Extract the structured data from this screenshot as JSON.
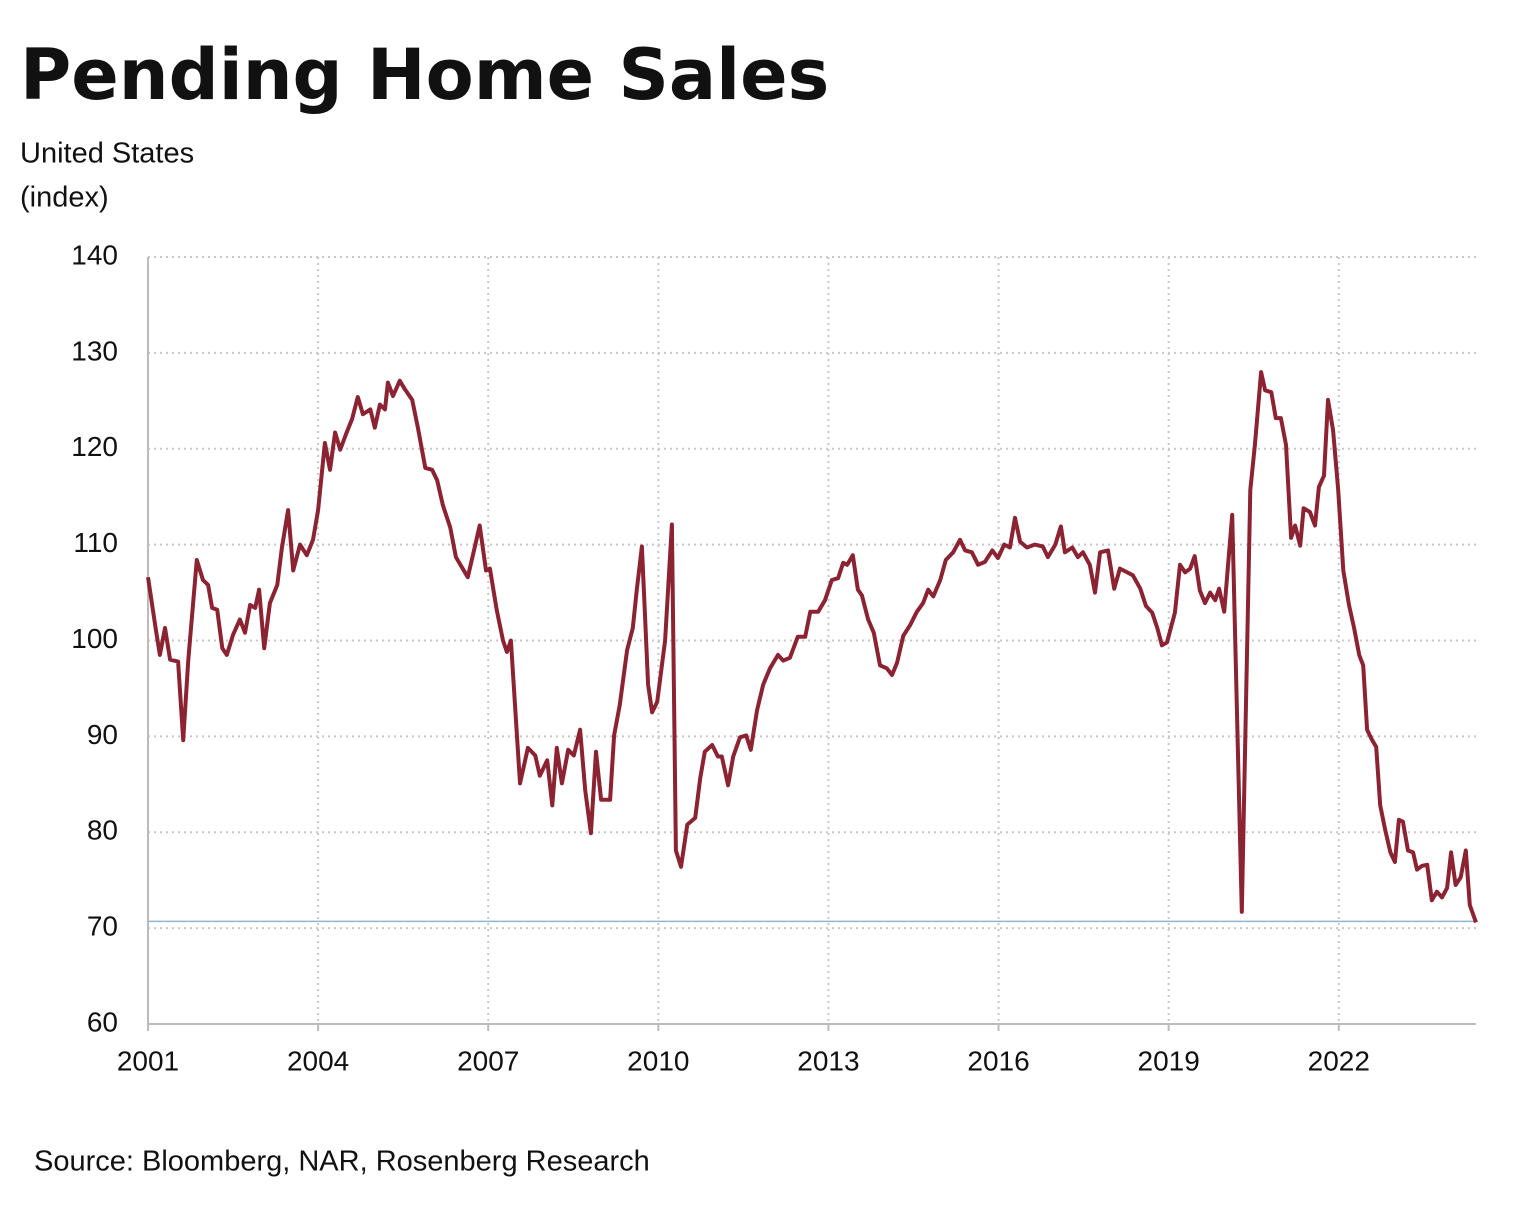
{
  "chart_data": {
    "type": "line",
    "title": "Pending Home Sales",
    "subtitle": "United States",
    "ylabel": "(index)",
    "source": "Source: Bloomberg, NAR, Rosenberg Research",
    "color": "#8b2332",
    "grid": true,
    "reference_line": 70.7,
    "reference_color": "#8fb4d6",
    "xlim": [
      2001,
      2024.42
    ],
    "xticks": [
      2001,
      2004,
      2007,
      2010,
      2013,
      2016,
      2019,
      2022
    ],
    "ylim": [
      60,
      140
    ],
    "yticks": [
      60,
      70,
      80,
      90,
      100,
      110,
      120,
      130,
      140
    ],
    "x": [
      2001.0,
      2001.14,
      2001.21,
      2001.3,
      2001.39,
      2001.53,
      2001.62,
      2001.71,
      2001.86,
      2001.97,
      2002.06,
      2002.13,
      2002.22,
      2002.31,
      2002.39,
      2002.5,
      2002.62,
      2002.71,
      2002.8,
      2002.89,
      2002.96,
      2003.05,
      2003.15,
      2003.28,
      2003.36,
      2003.47,
      2003.56,
      2003.68,
      2003.8,
      2003.91,
      2004.0,
      2004.12,
      2004.21,
      2004.3,
      2004.39,
      2004.49,
      2004.6,
      2004.7,
      2004.79,
      2004.92,
      2005.0,
      2005.09,
      2005.18,
      2005.23,
      2005.32,
      2005.44,
      2005.53,
      2005.66,
      2005.76,
      2005.89,
      2006.01,
      2006.1,
      2006.2,
      2006.33,
      2006.43,
      2006.54,
      2006.64,
      2006.75,
      2006.85,
      2006.96,
      2007.03,
      2007.15,
      2007.26,
      2007.33,
      2007.4,
      2007.56,
      2007.7,
      2007.83,
      2007.91,
      2008.04,
      2008.13,
      2008.21,
      2008.3,
      2008.41,
      2008.51,
      2008.62,
      2008.71,
      2008.81,
      2008.9,
      2008.99,
      2009.15,
      2009.22,
      2009.32,
      2009.45,
      2009.55,
      2009.62,
      2009.71,
      2009.82,
      2009.89,
      2009.98,
      2010.12,
      2010.24,
      2010.31,
      2010.4,
      2010.51,
      2010.65,
      2010.74,
      2010.82,
      2010.95,
      2011.05,
      2011.12,
      2011.23,
      2011.32,
      2011.44,
      2011.55,
      2011.63,
      2011.74,
      2011.85,
      2011.97,
      2012.11,
      2012.2,
      2012.32,
      2012.46,
      2012.59,
      2012.68,
      2012.82,
      2012.94,
      2013.06,
      2013.17,
      2013.26,
      2013.33,
      2013.43,
      2013.52,
      2013.59,
      2013.7,
      2013.8,
      2013.91,
      2014.03,
      2014.12,
      2014.21,
      2014.32,
      2014.44,
      2014.56,
      2014.67,
      2014.76,
      2014.85,
      2014.97,
      2015.07,
      2015.2,
      2015.32,
      2015.41,
      2015.53,
      2015.64,
      2015.76,
      2015.89,
      2015.99,
      2016.1,
      2016.2,
      2016.29,
      2016.38,
      2016.5,
      2016.64,
      2016.78,
      2016.87,
      2017.0,
      2017.1,
      2017.17,
      2017.3,
      2017.4,
      2017.49,
      2017.61,
      2017.7,
      2017.79,
      2017.93,
      2018.04,
      2018.14,
      2018.27,
      2018.37,
      2018.5,
      2018.6,
      2018.71,
      2018.8,
      2018.88,
      2018.97,
      2019.11,
      2019.2,
      2019.29,
      2019.38,
      2019.46,
      2019.55,
      2019.64,
      2019.73,
      2019.82,
      2019.89,
      2019.98,
      2020.12,
      2020.29,
      2020.44,
      2020.52,
      2020.63,
      2020.7,
      2020.81,
      2020.89,
      2020.98,
      2021.07,
      2021.16,
      2021.23,
      2021.32,
      2021.38,
      2021.49,
      2021.58,
      2021.65,
      2021.74,
      2021.81,
      2021.9,
      2021.99,
      2022.08,
      2022.18,
      2022.27,
      2022.36,
      2022.43,
      2022.5,
      2022.59,
      2022.66,
      2022.73,
      2022.82,
      2022.91,
      2022.99,
      2023.06,
      2023.13,
      2023.22,
      2023.31,
      2023.38,
      2023.47,
      2023.56,
      2023.64,
      2023.73,
      2023.82,
      2023.91,
      2023.98,
      2024.06,
      2024.15,
      2024.24,
      2024.31,
      2024.42
    ],
    "values": [
      106.6,
      101.1,
      98.5,
      101.3,
      98,
      97.8,
      89.6,
      98,
      108.4,
      106.3,
      105.8,
      103.4,
      103.2,
      99.2,
      98.5,
      100.6,
      102.2,
      100.8,
      103.7,
      103.4,
      105.3,
      99.2,
      103.9,
      105.8,
      109.6,
      113.6,
      107.3,
      110,
      108.9,
      110.5,
      113.6,
      120.6,
      117.8,
      121.7,
      119.9,
      121.5,
      123.1,
      125.4,
      123.6,
      124.1,
      122.2,
      124.6,
      124.1,
      126.9,
      125.5,
      127.1,
      126.2,
      125.1,
      122.2,
      118.0,
      117.8,
      116.7,
      114.1,
      111.8,
      108.7,
      107.6,
      106.6,
      109.4,
      112.0,
      107.3,
      107.5,
      103.2,
      100.0,
      98.8,
      100.0,
      85.1,
      88.8,
      88.0,
      85.9,
      87.5,
      82.8,
      88.8,
      85.1,
      88.6,
      88.0,
      90.7,
      84.4,
      79.9,
      88.4,
      83.4,
      83.4,
      90.1,
      93.3,
      99.0,
      101.3,
      105.3,
      109.8,
      95.4,
      92.5,
      93.6,
      100.0,
      112.1,
      78.1,
      76.4,
      80.8,
      81.5,
      85.7,
      88.4,
      89.1,
      87.9,
      87.9,
      84.9,
      87.9,
      89.9,
      90.1,
      88.6,
      92.7,
      95.4,
      97.1,
      98.5,
      97.9,
      98.2,
      100.4,
      100.4,
      103.0,
      103.0,
      104.2,
      106.3,
      106.5,
      108.1,
      107.9,
      108.9,
      105.3,
      104.7,
      102.2,
      100.8,
      97.4,
      97.1,
      96.4,
      97.7,
      100.5,
      101.6,
      103.0,
      103.9,
      105.3,
      104.6,
      106.3,
      108.4,
      109.2,
      110.5,
      109.4,
      109.2,
      107.9,
      108.2,
      109.4,
      108.6,
      110.0,
      109.7,
      112.8,
      110.3,
      109.7,
      110.0,
      109.8,
      108.7,
      110.0,
      111.9,
      109.2,
      109.7,
      108.7,
      109.2,
      107.9,
      105.0,
      109.2,
      109.4,
      105.4,
      107.5,
      107.1,
      106.8,
      105.4,
      103.6,
      102.9,
      101.3,
      99.5,
      99.8,
      102.9,
      107.9,
      107.1,
      107.5,
      108.8,
      105.2,
      103.9,
      105.0,
      104.2,
      105.4,
      103.0,
      113.1,
      71.7,
      115.7,
      120.4,
      128.0,
      126.1,
      125.9,
      123.2,
      123.2,
      120.4,
      110.7,
      112.0,
      109.9,
      113.8,
      113.4,
      112.0,
      116.0,
      117.2,
      125.1,
      121.9,
      115.7,
      107.3,
      103.7,
      101.3,
      98.5,
      97.4,
      90.7,
      89.6,
      88.9,
      82.8,
      80.2,
      77.9,
      76.9,
      81.3,
      81.1,
      78.1,
      77.9,
      76.1,
      76.5,
      76.6,
      72.9,
      73.8,
      73.2,
      74.2,
      77.9,
      74.5,
      75.3,
      78.1,
      72.4,
      70.6
    ]
  }
}
